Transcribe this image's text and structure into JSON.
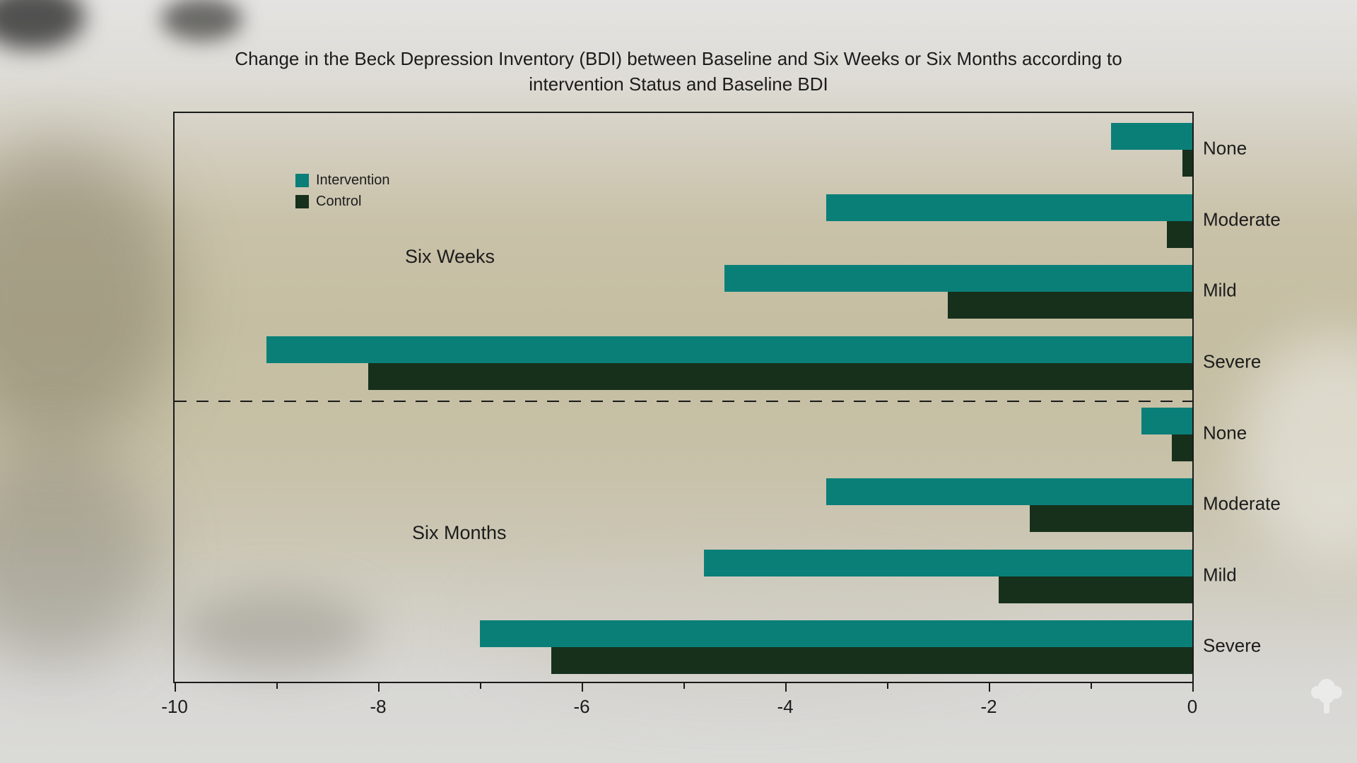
{
  "title": {
    "line1": "Change in the Beck Depression Inventory (BDI) between Baseline and Six Weeks or Six Months according to",
    "line2": "intervention Status and Baseline BDI"
  },
  "colors": {
    "intervention": "#0a7f78",
    "control": "#16301c",
    "text": "#1c1c1c",
    "axis": "#1a1a1a",
    "logo": "#ededec"
  },
  "legend": {
    "items": [
      {
        "label": "Intervention",
        "series": "intervention"
      },
      {
        "label": "Control",
        "series": "control"
      }
    ]
  },
  "chart_data": {
    "type": "bar",
    "orientation": "horizontal",
    "title": "Change in the Beck Depression Inventory (BDI) between Baseline and Six Weeks or Six Months according to intervention Status and Baseline BDI",
    "xlabel": "",
    "ylabel": "",
    "xlim": [
      -10,
      0
    ],
    "x_tick_labels": [
      "-10",
      "-8",
      "-6",
      "-4",
      "-2",
      "0"
    ],
    "x_major_ticks": [
      -10,
      -8,
      -6,
      -4,
      -2,
      0
    ],
    "x_minor_ticks": [
      -9,
      -7,
      -5,
      -3,
      -1
    ],
    "grid": false,
    "legend_position": "upper-left-inside",
    "group_separator": "dashed-line",
    "groups": [
      {
        "label": "Six Weeks",
        "categories": [
          "None",
          "Moderate",
          "Mild",
          "Severe"
        ],
        "series": [
          {
            "name": "Intervention",
            "color_key": "intervention",
            "values": [
              -0.8,
              -3.6,
              -4.6,
              -9.1
            ]
          },
          {
            "name": "Control",
            "color_key": "control",
            "values": [
              -0.1,
              -0.25,
              -2.4,
              -8.1
            ]
          }
        ]
      },
      {
        "label": "Six Months",
        "categories": [
          "None",
          "Moderate",
          "Mild",
          "Severe"
        ],
        "series": [
          {
            "name": "Intervention",
            "color_key": "intervention",
            "values": [
              -0.5,
              -3.6,
              -4.8,
              -7.0
            ]
          },
          {
            "name": "Control",
            "color_key": "control",
            "values": [
              -0.2,
              -1.6,
              -1.9,
              -6.3
            ]
          }
        ]
      }
    ]
  },
  "watermark": {
    "icon": "tree-logo"
  }
}
